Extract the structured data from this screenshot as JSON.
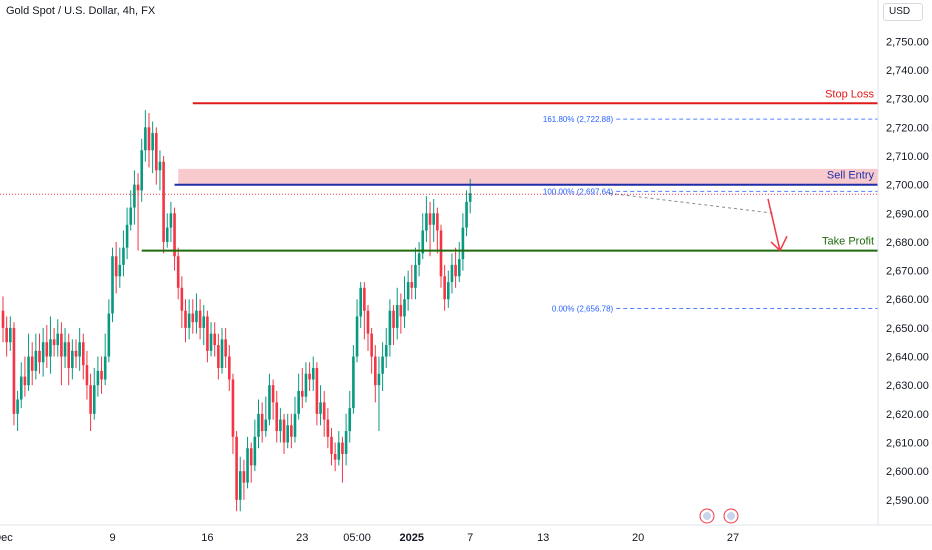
{
  "header": {
    "symbol_title": "Gold Spot / U.S. Dollar, 4h, FX",
    "currency": "USD"
  },
  "colors": {
    "up": "#089981",
    "down": "#f23645",
    "stop_loss": "#e01919",
    "sell_entry": "#1e2fa8",
    "take_profit": "#1e6b0e",
    "zone_fill": "#f7c3c8",
    "fib": "#2962ff",
    "current_price": "#f23645"
  },
  "chart_data": {
    "type": "candlestick",
    "ylim": [
      2584,
      2762
    ],
    "y_ticks": [
      "2,750.00",
      "2,740.00",
      "2,730.00",
      "2,720.00",
      "2,710.00",
      "2,700.00",
      "2,690.00",
      "2,680.00",
      "2,670.00",
      "2,660.00",
      "2,650.00",
      "2,640.00",
      "2,630.00",
      "2,620.00",
      "2,610.00",
      "2,600.00",
      "2,590.00"
    ],
    "y_tick_values": [
      2750,
      2740,
      2730,
      2720,
      2710,
      2700,
      2690,
      2680,
      2670,
      2660,
      2650,
      2640,
      2630,
      2620,
      2610,
      2600,
      2590
    ],
    "x_ticks": [
      {
        "label": "Dec",
        "bold": false,
        "bar": 0
      },
      {
        "label": "9",
        "bold": false,
        "bar": 30
      },
      {
        "label": "16",
        "bold": false,
        "bar": 56
      },
      {
        "label": "23",
        "bold": false,
        "bar": 82
      },
      {
        "label": "05:00",
        "bold": false,
        "bar": 97
      },
      {
        "label": "2025",
        "bold": true,
        "bar": 112
      },
      {
        "label": "7",
        "bold": false,
        "bar": 128
      },
      {
        "label": "13",
        "bold": false,
        "bar": 148
      },
      {
        "label": "20",
        "bold": false,
        "bar": 174
      },
      {
        "label": "27",
        "bold": false,
        "bar": 200
      }
    ],
    "candles": [
      [
        2656,
        2650,
        2661,
        2645
      ],
      [
        2650,
        2645,
        2654,
        2640
      ],
      [
        2645,
        2650,
        2654,
        2642
      ],
      [
        2650,
        2620,
        2652,
        2616
      ],
      [
        2620,
        2625,
        2628,
        2614
      ],
      [
        2625,
        2633,
        2638,
        2622
      ],
      [
        2633,
        2630,
        2640,
        2626
      ],
      [
        2630,
        2640,
        2648,
        2628
      ],
      [
        2640,
        2635,
        2645,
        2630
      ],
      [
        2635,
        2642,
        2648,
        2632
      ],
      [
        2642,
        2638,
        2648,
        2634
      ],
      [
        2638,
        2645,
        2650,
        2633
      ],
      [
        2645,
        2640,
        2651,
        2636
      ],
      [
        2640,
        2646,
        2654,
        2634
      ],
      [
        2646,
        2644,
        2650,
        2640
      ],
      [
        2644,
        2648,
        2653,
        2640
      ],
      [
        2648,
        2640,
        2652,
        2630
      ],
      [
        2640,
        2645,
        2650,
        2636
      ],
      [
        2645,
        2636,
        2648,
        2630
      ],
      [
        2636,
        2642,
        2646,
        2632
      ],
      [
        2642,
        2640,
        2646,
        2636
      ],
      [
        2640,
        2645,
        2650,
        2635
      ],
      [
        2645,
        2637,
        2648,
        2632
      ],
      [
        2637,
        2630,
        2642,
        2625
      ],
      [
        2630,
        2620,
        2634,
        2614
      ],
      [
        2620,
        2630,
        2636,
        2618
      ],
      [
        2630,
        2635,
        2640,
        2626
      ],
      [
        2635,
        2632,
        2640,
        2627
      ],
      [
        2632,
        2640,
        2648,
        2630
      ],
      [
        2640,
        2655,
        2660,
        2638
      ],
      [
        2655,
        2675,
        2678,
        2652
      ],
      [
        2675,
        2668,
        2680,
        2662
      ],
      [
        2668,
        2672,
        2678,
        2664
      ],
      [
        2672,
        2678,
        2684,
        2668
      ],
      [
        2678,
        2686,
        2692,
        2674
      ],
      [
        2686,
        2692,
        2698,
        2684
      ],
      [
        2692,
        2700,
        2705,
        2686
      ],
      [
        2700,
        2698,
        2704,
        2677
      ],
      [
        2698,
        2712,
        2716,
        2694
      ],
      [
        2712,
        2720,
        2726,
        2708
      ],
      [
        2720,
        2712,
        2725,
        2706
      ],
      [
        2712,
        2718,
        2722,
        2704
      ],
      [
        2718,
        2705,
        2720,
        2700
      ],
      [
        2705,
        2708,
        2712,
        2698
      ],
      [
        2708,
        2680,
        2710,
        2676
      ],
      [
        2680,
        2685,
        2690,
        2678
      ],
      [
        2685,
        2690,
        2694,
        2680
      ],
      [
        2690,
        2675,
        2692,
        2670
      ],
      [
        2675,
        2664,
        2678,
        2660
      ],
      [
        2664,
        2656,
        2668,
        2650
      ],
      [
        2656,
        2650,
        2660,
        2645
      ],
      [
        2650,
        2655,
        2660,
        2646
      ],
      [
        2655,
        2652,
        2660,
        2648
      ],
      [
        2652,
        2656,
        2662,
        2648
      ],
      [
        2656,
        2650,
        2660,
        2646
      ],
      [
        2650,
        2654,
        2658,
        2644
      ],
      [
        2654,
        2642,
        2656,
        2638
      ],
      [
        2642,
        2648,
        2652,
        2640
      ],
      [
        2648,
        2644,
        2652,
        2640
      ],
      [
        2644,
        2636,
        2648,
        2632
      ],
      [
        2636,
        2646,
        2650,
        2634
      ],
      [
        2646,
        2640,
        2650,
        2636
      ],
      [
        2640,
        2632,
        2644,
        2628
      ],
      [
        2632,
        2612,
        2634,
        2606
      ],
      [
        2612,
        2590,
        2614,
        2586
      ],
      [
        2590,
        2600,
        2605,
        2586
      ],
      [
        2600,
        2596,
        2604,
        2590
      ],
      [
        2596,
        2608,
        2612,
        2594
      ],
      [
        2608,
        2602,
        2610,
        2596
      ],
      [
        2602,
        2612,
        2618,
        2600
      ],
      [
        2612,
        2620,
        2625,
        2608
      ],
      [
        2620,
        2614,
        2624,
        2610
      ],
      [
        2614,
        2618,
        2626,
        2612
      ],
      [
        2618,
        2630,
        2634,
        2616
      ],
      [
        2630,
        2624,
        2632,
        2618
      ],
      [
        2624,
        2614,
        2628,
        2610
      ],
      [
        2614,
        2618,
        2622,
        2610
      ],
      [
        2618,
        2610,
        2620,
        2606
      ],
      [
        2610,
        2616,
        2620,
        2608
      ],
      [
        2616,
        2612,
        2620,
        2608
      ],
      [
        2612,
        2620,
        2626,
        2610
      ],
      [
        2620,
        2628,
        2634,
        2618
      ],
      [
        2628,
        2626,
        2636,
        2622
      ],
      [
        2626,
        2634,
        2638,
        2624
      ],
      [
        2634,
        2632,
        2638,
        2628
      ],
      [
        2632,
        2636,
        2640,
        2628
      ],
      [
        2636,
        2620,
        2638,
        2616
      ],
      [
        2620,
        2624,
        2630,
        2616
      ],
      [
        2624,
        2618,
        2628,
        2612
      ],
      [
        2618,
        2612,
        2622,
        2608
      ],
      [
        2612,
        2606,
        2615,
        2602
      ],
      [
        2606,
        2604,
        2610,
        2600
      ],
      [
        2604,
        2610,
        2614,
        2602
      ],
      [
        2610,
        2606,
        2612,
        2596
      ],
      [
        2606,
        2614,
        2620,
        2602
      ],
      [
        2614,
        2622,
        2628,
        2610
      ],
      [
        2622,
        2640,
        2644,
        2620
      ],
      [
        2640,
        2654,
        2660,
        2638
      ],
      [
        2654,
        2664,
        2666,
        2650
      ],
      [
        2664,
        2656,
        2666,
        2646
      ],
      [
        2656,
        2648,
        2658,
        2642
      ],
      [
        2648,
        2640,
        2650,
        2634
      ],
      [
        2640,
        2630,
        2644,
        2624
      ],
      [
        2630,
        2634,
        2640,
        2614
      ],
      [
        2634,
        2640,
        2645,
        2628
      ],
      [
        2640,
        2644,
        2650,
        2636
      ],
      [
        2644,
        2656,
        2660,
        2640
      ],
      [
        2656,
        2650,
        2658,
        2644
      ],
      [
        2650,
        2658,
        2664,
        2646
      ],
      [
        2658,
        2654,
        2662,
        2648
      ],
      [
        2654,
        2660,
        2668,
        2650
      ],
      [
        2660,
        2666,
        2670,
        2656
      ],
      [
        2666,
        2664,
        2672,
        2660
      ],
      [
        2664,
        2672,
        2678,
        2660
      ],
      [
        2672,
        2676,
        2680,
        2668
      ],
      [
        2676,
        2684,
        2690,
        2674
      ],
      [
        2684,
        2690,
        2696,
        2680
      ],
      [
        2690,
        2686,
        2694,
        2675
      ],
      [
        2686,
        2690,
        2695,
        2680
      ],
      [
        2690,
        2684,
        2692,
        2676
      ],
      [
        2684,
        2668,
        2686,
        2664
      ],
      [
        2668,
        2660,
        2672,
        2656
      ],
      [
        2660,
        2666,
        2670,
        2657
      ],
      [
        2666,
        2672,
        2676,
        2662
      ],
      [
        2672,
        2668,
        2678,
        2664
      ],
      [
        2668,
        2674,
        2680,
        2666
      ],
      [
        2674,
        2685,
        2690,
        2670
      ],
      [
        2685,
        2694,
        2698,
        2682
      ],
      [
        2694,
        2697,
        2702,
        2690
      ]
    ],
    "levels": [
      {
        "name": "Stop Loss",
        "value": 2728.4,
        "label": "2,728.40",
        "color_key": "stop_loss"
      },
      {
        "name": "Sell Entry",
        "value": 2699.98,
        "label": "2,699.98",
        "color_key": "sell_entry"
      },
      {
        "name": "Take Profit",
        "value": 2676.96,
        "label": "2,676.96",
        "color_key": "take_profit"
      }
    ],
    "current_price": {
      "value": 2696.66,
      "label": "2,696.66"
    },
    "fib_levels": [
      {
        "label": "161.80% (2,722.88)",
        "value": 2722.88
      },
      {
        "label": "100.00% (2,697.64)",
        "value": 2697.64
      },
      {
        "label": "0.00% (2,656.78)",
        "value": 2656.78
      }
    ],
    "sell_zone": {
      "from": 2699.98,
      "to": 2705.5
    },
    "grid": false,
    "legend": "none"
  }
}
